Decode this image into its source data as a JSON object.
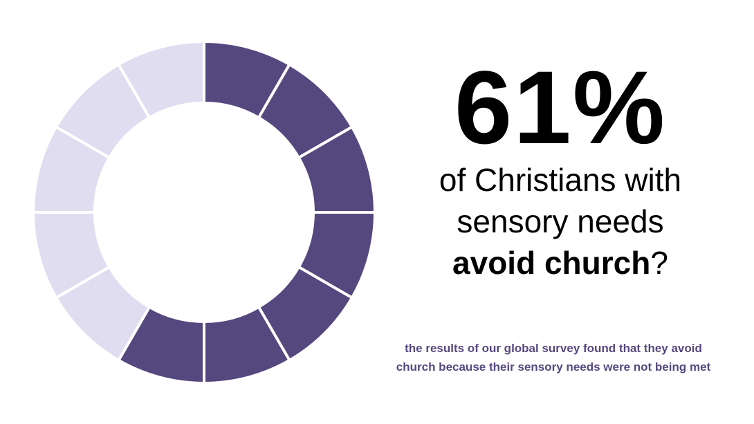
{
  "chart_data": {
    "type": "pie",
    "variant": "donut",
    "total_segments": 12,
    "highlighted_segments": 7,
    "highlighted_fraction": 0.61,
    "colors": {
      "highlighted": "#55487f",
      "remaining": "#e1ddf1",
      "separator": "#ffffff"
    }
  },
  "headline": {
    "value": "61%",
    "line1": "of Christians with",
    "line2": "sensory needs",
    "line3_bold": "avoid church",
    "line3_suffix": "?"
  },
  "footnote": {
    "line1": "the results of our global survey found that they avoid",
    "line2": "church because their sensory needs were not being met"
  }
}
